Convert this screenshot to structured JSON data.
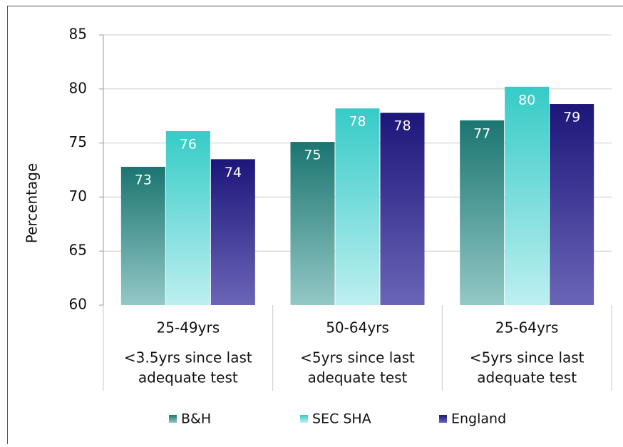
{
  "chart_data": {
    "type": "bar",
    "y_label": "Percentage",
    "categories": [
      [
        "25-49yrs",
        "<3.5yrs since last",
        "adequate test"
      ],
      [
        "50-64yrs",
        "<5yrs since last",
        "adequate test"
      ],
      [
        "25-64yrs",
        "<5yrs since last",
        "adequate test"
      ]
    ],
    "series": [
      {
        "name": "B&H",
        "color": [
          "#1b7571",
          "#93c8c6"
        ],
        "values": [
          72.8,
          75.1,
          77.1
        ],
        "value_labels": [
          "73",
          "75",
          "77"
        ]
      },
      {
        "name": "SEC SHA",
        "color": [
          "#36cbc7",
          "#bdeff0"
        ],
        "values": [
          76.1,
          78.2,
          80.2
        ],
        "value_labels": [
          "76",
          "78",
          "80"
        ]
      },
      {
        "name": "England",
        "color": [
          "#1c167a",
          "#6b65b7"
        ],
        "values": [
          73.5,
          77.8,
          78.6
        ],
        "value_labels": [
          "74",
          "78",
          "79"
        ]
      }
    ],
    "ylim": [
      60,
      85
    ],
    "yticks": [
      60,
      65,
      70,
      75,
      80,
      85
    ],
    "grid": true,
    "legend": "bottom"
  }
}
